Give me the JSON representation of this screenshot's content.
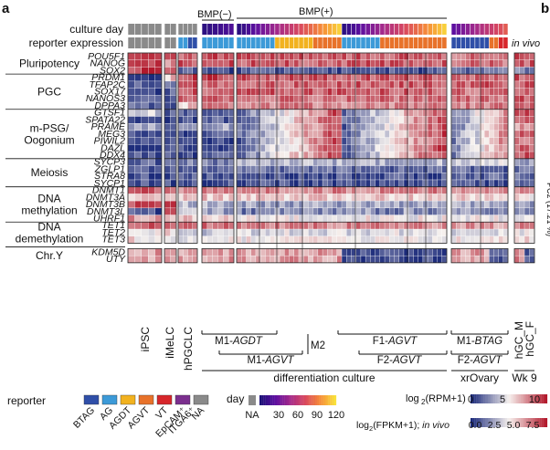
{
  "chart_data": {
    "type": "heatmap",
    "panel_letter": "a",
    "next_panel_letter": "b",
    "right_edge_fragment": "PC2 (17.21 %)",
    "annotation_rows": [
      "culture day",
      "reporter expression"
    ],
    "bmp_labels": [
      "BMP(−)",
      "BMP(+)"
    ],
    "in_vivo_label": "in vivo",
    "gene_groups": [
      {
        "name": "Pluripotency",
        "genes": [
          "POU5F1",
          "NANOG",
          "SOX2"
        ]
      },
      {
        "name": "PGC",
        "genes": [
          "PRDM1",
          "TFAP2C",
          "SOX17",
          "NANOS3",
          "DPPA3"
        ]
      },
      {
        "name": "m-PSG/\nOogonium",
        "genes": [
          "GTSF1",
          "SPATA22",
          "PRAME",
          "MEG3",
          "PIWIL2",
          "DAZL",
          "DDX4"
        ]
      },
      {
        "name": "Meiosis",
        "genes": [
          "SYCP3",
          "ZGLP1",
          "STRA8",
          "SYCP1"
        ]
      },
      {
        "name": "DNA\nmethylation",
        "genes": [
          "DNMT1",
          "DNMT3A",
          "DNMT3B",
          "DNMT3L",
          "UHRF1"
        ]
      },
      {
        "name": "DNA\ndemethylation",
        "genes": [
          "TET1",
          "TET2",
          "TET3"
        ]
      },
      {
        "name": "Chr.Y",
        "genes": [
          "KDM5D",
          "UTY"
        ]
      }
    ],
    "column_groups": [
      {
        "name": "iPSC"
      },
      {
        "name": "iMeLC"
      },
      {
        "name": "hPGCLC"
      },
      {
        "name": "M1-AGDT"
      },
      {
        "name": "M1-AGVT"
      },
      {
        "name": "M2"
      },
      {
        "name": "F1-AGVT"
      },
      {
        "name": "F2-AGVT"
      },
      {
        "name": "M1-BTAG"
      },
      {
        "name": "F2-AGVT"
      },
      {
        "name": "hGC_M"
      },
      {
        "name": "hGC_F"
      }
    ],
    "bracket_labels": [
      "differentiation culture",
      "xrOvary",
      "Wk 9"
    ],
    "reporter_legend": {
      "title": "reporter",
      "entries": [
        {
          "label": "BTAG",
          "color": "#2f4fa8"
        },
        {
          "label": "AG",
          "color": "#3c9ad8"
        },
        {
          "label": "AGDT",
          "color": "#f2b21f"
        },
        {
          "label": "AGVT",
          "color": "#e8722a"
        },
        {
          "label": "VT",
          "color": "#d7262b"
        },
        {
          "label": "EpCAM+ ITGA6+",
          "color": "#7b2f8e"
        },
        {
          "label": "NA",
          "color": "#8a8a8a"
        }
      ]
    },
    "day_legend": {
      "title": "day",
      "na_label": "NA",
      "ticks": [
        "30",
        "60",
        "90",
        "120"
      ],
      "range": [
        0,
        120
      ]
    },
    "rpm_legend": {
      "title": "log2(RPM+1)",
      "ticks": [
        "0",
        "5",
        "10"
      ],
      "range": [
        0,
        12
      ]
    },
    "fpkm_legend": {
      "title": "log2(FPKM+1); in vivo",
      "ticks": [
        "0.0",
        "2.5",
        "5.0",
        "7.5"
      ]
    },
    "colors": {
      "low": "#1b2a7a",
      "mid": "#f6f1ee",
      "high": "#b2182b",
      "na": "#8a8a8a"
    }
  }
}
